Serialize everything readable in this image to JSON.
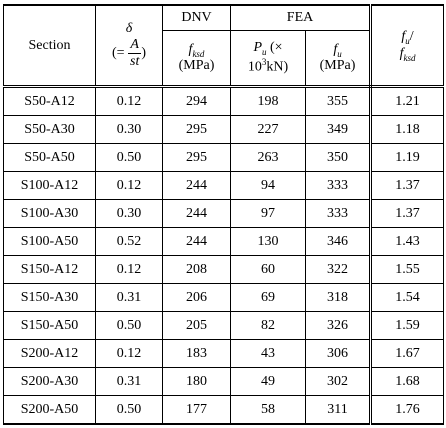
{
  "table": {
    "header": {
      "section": "Section",
      "delta": {
        "symbol": "δ",
        "eq": "(=",
        "num": "A",
        "den": "st",
        "close": ")"
      },
      "dnv": "DNV",
      "fea": "FEA",
      "fksd": {
        "symbol": "f",
        "sub": "ksd",
        "unit": "(MPa)"
      },
      "pu": {
        "symbol": "P",
        "sub": "u",
        "times": "(×",
        "base": "10",
        "pow": "3",
        "unit": "kN)"
      },
      "fu": {
        "symbol": "f",
        "sub": "u",
        "unit": "(MPa)"
      },
      "ratio": {
        "num_symbol": "f",
        "num_sub": "u",
        "slash": "/",
        "den_symbol": "f",
        "den_sub": "ksd"
      }
    },
    "rows": [
      [
        "S50-A12",
        "0.12",
        "294",
        "198",
        "355",
        "1.21"
      ],
      [
        "S50-A30",
        "0.30",
        "295",
        "227",
        "349",
        "1.18"
      ],
      [
        "S50-A50",
        "0.50",
        "295",
        "263",
        "350",
        "1.19"
      ],
      [
        "S100-A12",
        "0.12",
        "244",
        "94",
        "333",
        "1.37"
      ],
      [
        "S100-A30",
        "0.30",
        "244",
        "97",
        "333",
        "1.37"
      ],
      [
        "S100-A50",
        "0.52",
        "244",
        "130",
        "346",
        "1.43"
      ],
      [
        "S150-A12",
        "0.12",
        "208",
        "60",
        "322",
        "1.55"
      ],
      [
        "S150-A30",
        "0.31",
        "206",
        "69",
        "318",
        "1.54"
      ],
      [
        "S150-A50",
        "0.50",
        "205",
        "82",
        "326",
        "1.59"
      ],
      [
        "S200-A12",
        "0.12",
        "183",
        "43",
        "306",
        "1.67"
      ],
      [
        "S200-A30",
        "0.31",
        "180",
        "49",
        "302",
        "1.68"
      ],
      [
        "S200-A50",
        "0.50",
        "177",
        "58",
        "311",
        "1.76"
      ]
    ]
  }
}
